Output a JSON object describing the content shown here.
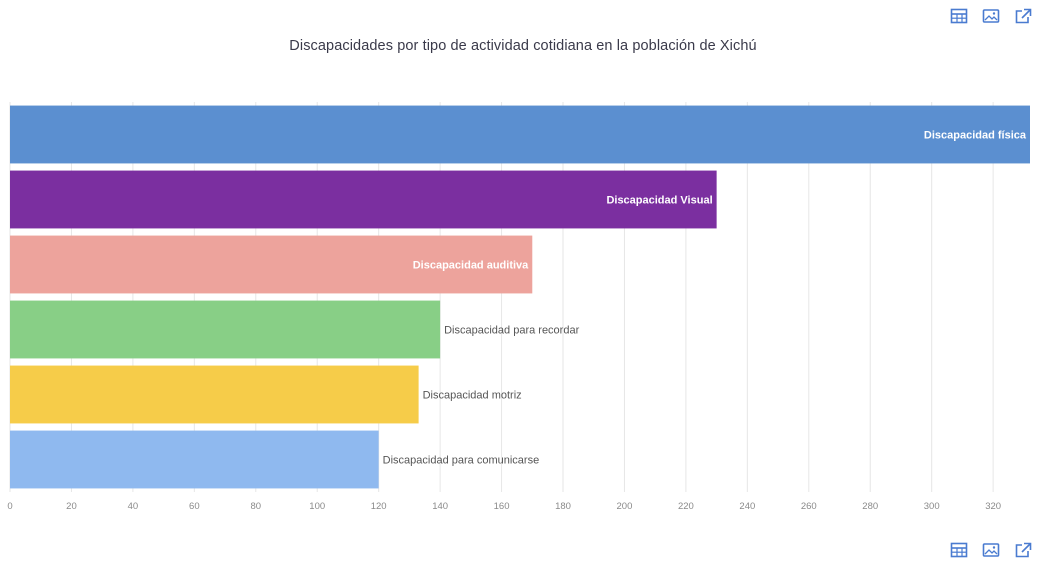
{
  "toolbar_top": {
    "icons": [
      "table-icon",
      "image-icon",
      "external-link-icon"
    ]
  },
  "toolbar_bottom": {
    "icons": [
      "table-icon",
      "image-icon",
      "external-link-icon"
    ]
  },
  "colors": {
    "icon": "#4a7bd0",
    "grid": "#e6e6e6",
    "bars": [
      "#5b8fd0",
      "#7b2fa0",
      "#eda39c",
      "#88cf86",
      "#f6cc49",
      "#8fb9ef"
    ]
  },
  "chart_data": {
    "type": "bar",
    "orientation": "horizontal",
    "title": "Discapacidades por tipo de actividad cotidiana en la población de Xichú",
    "xlabel": "",
    "ylabel": "",
    "categories": [
      "Discapacidad física",
      "Discapacidad Visual",
      "Discapacidad auditiva",
      "Discapacidad para recordar",
      "Discapacidad motriz",
      "Discapacidad para comunicarse"
    ],
    "values": [
      332,
      230,
      170,
      140,
      133,
      120
    ],
    "label_inside": [
      true,
      true,
      true,
      false,
      false,
      false
    ],
    "xlim": [
      0,
      332
    ],
    "xticks": [
      0,
      20,
      40,
      60,
      80,
      100,
      120,
      140,
      160,
      180,
      200,
      220,
      240,
      260,
      280,
      300,
      320
    ],
    "grid": true,
    "legend": "none"
  }
}
